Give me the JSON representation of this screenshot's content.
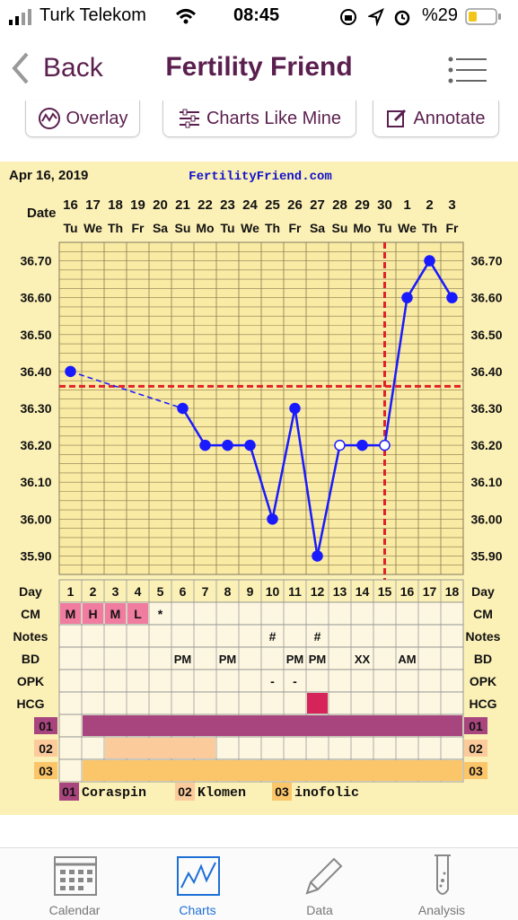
{
  "status": {
    "carrier": "Turk Telekom",
    "time": "08:45",
    "battery": "%29"
  },
  "nav": {
    "back": "Back",
    "title": "Fertility Friend",
    "menu_icon": "hamburger-menu-icon"
  },
  "toolbar": {
    "overlay": "Overlay",
    "charts_like_mine": "Charts Like Mine",
    "annotate": "Annotate"
  },
  "chart": {
    "date": "Apr 16, 2019",
    "site": "FertilityFriend.com",
    "date_label": "Date",
    "dates": [
      "16",
      "17",
      "18",
      "19",
      "20",
      "21",
      "22",
      "23",
      "24",
      "25",
      "26",
      "27",
      "28",
      "29",
      "30",
      "1",
      "2",
      "3"
    ],
    "weekdays": [
      "Tu",
      "We",
      "Th",
      "Fr",
      "Sa",
      "Su",
      "Mo",
      "Tu",
      "We",
      "Th",
      "Fr",
      "Sa",
      "Su",
      "Mo",
      "Tu",
      "We",
      "Th",
      "Fr"
    ],
    "y_ticks": [
      "36.70",
      "36.60",
      "36.50",
      "36.40",
      "36.30",
      "36.20",
      "36.10",
      "36.00",
      "35.90"
    ],
    "row_labels": [
      "Day",
      "CM",
      "Notes",
      "BD",
      "OPK",
      "HCG"
    ],
    "days": [
      "1",
      "2",
      "3",
      "4",
      "5",
      "6",
      "7",
      "8",
      "9",
      "10",
      "11",
      "12",
      "13",
      "14",
      "15",
      "16",
      "17",
      "18"
    ],
    "cm": [
      "M",
      "H",
      "M",
      "L",
      "*",
      "",
      "",
      "",
      "",
      "",
      "",
      "",
      "",
      "",
      "",
      "",
      "",
      ""
    ],
    "notes": [
      "",
      "",
      "",
      "",
      "",
      "",
      "",
      "",
      "",
      "#",
      "",
      "#",
      "",
      "",
      "",
      "",
      "",
      ""
    ],
    "bd": [
      "",
      "",
      "",
      "",
      "",
      "PM",
      "",
      "PM",
      "",
      "",
      "PM",
      "PM",
      "",
      "XX",
      "",
      "AM",
      "",
      ""
    ],
    "opk": [
      "",
      "",
      "",
      "",
      "",
      "",
      "",
      "",
      "",
      "-",
      "-",
      "",
      "",
      "",
      "",
      "",
      "",
      ""
    ],
    "med_rows": [
      "01",
      "02",
      "03"
    ],
    "legend": [
      {
        "code": "01",
        "name": "Coraspin"
      },
      {
        "code": "02",
        "name": "Klomen"
      },
      {
        "code": "03",
        "name": "inofolic"
      }
    ]
  },
  "chart_data": {
    "type": "line",
    "x": [
      "16",
      "17",
      "18",
      "19",
      "20",
      "21",
      "22",
      "23",
      "24",
      "25",
      "26",
      "27",
      "28",
      "29",
      "30",
      "1",
      "2",
      "3"
    ],
    "series": [
      {
        "values": [
          36.4,
          null,
          null,
          null,
          null,
          36.3,
          36.2,
          36.2,
          36.2,
          36.0,
          36.3,
          35.9,
          36.2,
          36.2,
          36.2,
          36.6,
          36.7,
          36.6
        ]
      }
    ],
    "open_points_day": [
      13,
      15
    ],
    "coverline": 36.36,
    "ovulation_day": 15,
    "ylim": [
      35.85,
      36.75
    ],
    "hcg_day": 12,
    "med01_days": [
      2,
      18
    ],
    "med02_days": [
      3,
      7
    ],
    "med03_days": [
      2,
      18
    ]
  },
  "tabs": [
    {
      "label": "Calendar",
      "icon": "calendar-icon"
    },
    {
      "label": "Charts",
      "icon": "chart-icon"
    },
    {
      "label": "Data",
      "icon": "pencil-icon"
    },
    {
      "label": "Analysis",
      "icon": "test-tube-icon"
    }
  ],
  "colors": {
    "brand": "#5a1f4e",
    "chart_bg": "#fbf0b6",
    "line": "#1a1aff",
    "coverline": "#e0212a",
    "cm_fill": "#f07ca0",
    "med01": "#a9457e",
    "med02": "#fccb9b",
    "med03": "#fbc56a",
    "hcg": "#d6245a",
    "tab_active": "#1d6fd6"
  }
}
